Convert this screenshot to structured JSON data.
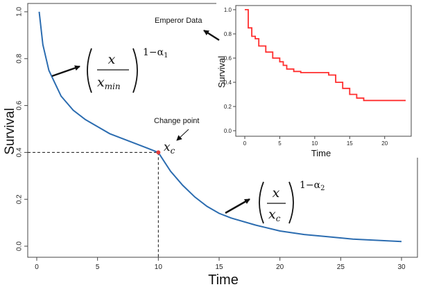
{
  "chart_data": [
    {
      "type": "line",
      "title": "",
      "xlabel": "Time",
      "ylabel": "Survival",
      "xlim": [
        0,
        30
      ],
      "ylim": [
        0,
        1
      ],
      "xticks": [
        0,
        5,
        10,
        15,
        20,
        25,
        30
      ],
      "yticks": [
        0.0,
        0.2,
        0.4,
        0.6,
        0.8,
        1.0
      ],
      "ytick_labels": [
        "0.0",
        "0.2",
        "0.4",
        "0.6",
        "0.8",
        "1.0"
      ],
      "series": [
        {
          "name": "Survival",
          "color": "#2b6cb0",
          "x": [
            0.2,
            0.5,
            1,
            2,
            3,
            4,
            5,
            6,
            7,
            8,
            9,
            10,
            11,
            12,
            13,
            14,
            15,
            16,
            18,
            20,
            22,
            24,
            26,
            28,
            30
          ],
          "y": [
            1.0,
            0.86,
            0.75,
            0.64,
            0.58,
            0.54,
            0.51,
            0.48,
            0.46,
            0.44,
            0.42,
            0.4,
            0.32,
            0.26,
            0.21,
            0.17,
            0.14,
            0.12,
            0.09,
            0.065,
            0.05,
            0.04,
            0.03,
            0.025,
            0.02
          ]
        }
      ],
      "change_point": {
        "x": 10,
        "y": 0.4,
        "color": "#e53e3e"
      },
      "annotations": {
        "change_point_label": "Change point",
        "xc_symbol": "x",
        "xc_sub": "c",
        "formula1": {
          "num": "x",
          "den": "x",
          "den_sub": "min",
          "exp_prefix": "1−α",
          "exp_sub": "1"
        },
        "formula2": {
          "num": "x",
          "den": "x",
          "den_sub": "c",
          "exp_prefix": "1−α",
          "exp_sub": "2"
        }
      }
    },
    {
      "type": "line",
      "title": "Emperor Data",
      "xlabel": "Time",
      "ylabel": "Survival",
      "xlim": [
        0,
        23
      ],
      "ylim": [
        0,
        1
      ],
      "xticks": [
        0,
        5,
        10,
        15,
        20
      ],
      "yticks": [
        0.0,
        0.2,
        0.4,
        0.6,
        0.8,
        1.0
      ],
      "ytick_labels": [
        "0.0",
        "0.2",
        "0.4",
        "0.6",
        "0.8",
        "1.0"
      ],
      "series": [
        {
          "name": "Emperor survival",
          "color": "#ff2d2d",
          "step": true,
          "x": [
            0,
            0.5,
            1,
            1.5,
            2,
            3,
            4,
            5,
            5.5,
            6,
            7,
            8,
            12,
            13,
            14,
            15,
            16,
            17,
            23
          ],
          "y": [
            1.0,
            0.85,
            0.78,
            0.76,
            0.7,
            0.65,
            0.6,
            0.57,
            0.54,
            0.51,
            0.49,
            0.48,
            0.46,
            0.4,
            0.35,
            0.3,
            0.27,
            0.25,
            0.25
          ]
        }
      ]
    }
  ]
}
